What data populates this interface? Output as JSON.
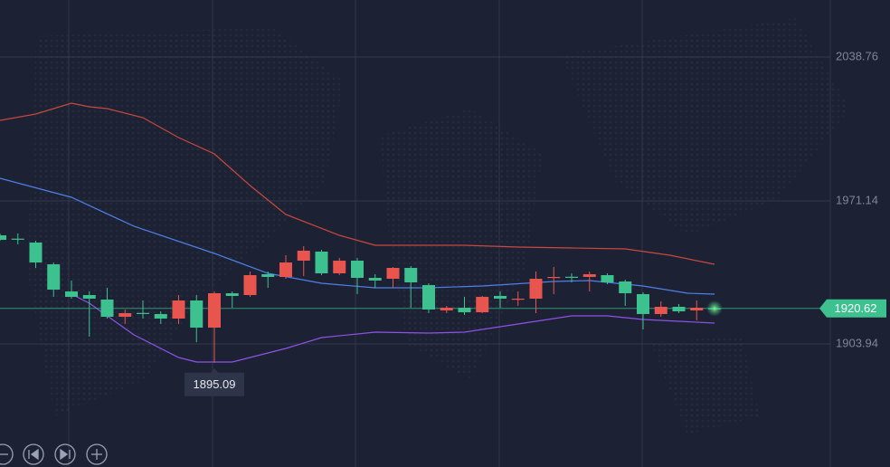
{
  "chart_data": {
    "type": "candlestick",
    "open": [
      1954.97,
      1953.4,
      1951.57,
      1941.36,
      1928.6,
      1926.9,
      1924.78,
      1916.7,
      1918.5,
      1917.98,
      1915.85,
      1924.35,
      1911.6,
      1927.75,
      1926.9,
      1936.69,
      1935.41,
      1943.06,
      1947.32,
      1937.11,
      1943.06,
      1934.98,
      1934.56,
      1939.66,
      1931.58,
      1919.68,
      1920.95,
      1918.83,
      1926.48,
      1925.1,
      1925.2,
      1935.3,
      1935.5,
      1935.41,
      1936.26,
      1933.28,
      1927.33,
      1917.98,
      1921.38,
      1919.68,
      1920.7
    ],
    "high": [
      1955.82,
      1955.82,
      1952.42,
      1942.21,
      1933.71,
      1928.6,
      1930.3,
      1920.1,
      1924.35,
      1919.25,
      1926.9,
      1926.9,
      1928.6,
      1928.6,
      1937.96,
      1937.96,
      1945.61,
      1949.87,
      1948.17,
      1944.34,
      1944.34,
      1936.69,
      1940.09,
      1940.51,
      1932.43,
      1921.8,
      1926.05,
      1926.48,
      1928.6,
      1928.6,
      1937.96,
      1940.09,
      1937.11,
      1937.96,
      1937.11,
      1934.13,
      1928.18,
      1923.93,
      1922.65,
      1924.35,
      1921.38
    ],
    "low": [
      1952.42,
      1950.72,
      1939.66,
      1926.05,
      1925.2,
      1907.34,
      1915.85,
      1913.3,
      1915.85,
      1913.3,
      1913.3,
      1904.79,
      1895.09,
      1920.95,
      1926.05,
      1930.3,
      1934.56,
      1935.84,
      1936.26,
      1936.26,
      1927.33,
      1930.3,
      1930.3,
      1920.95,
      1918.4,
      1918.4,
      1917.55,
      1918.4,
      1920.95,
      1921.8,
      1918.4,
      1927.33,
      1932.86,
      1928.6,
      1932.01,
      1921.8,
      1910.75,
      1916.7,
      1918.4,
      1915.0,
      1919.68
    ],
    "close": [
      1952.85,
      1953.27,
      1942.21,
      1929.45,
      1926.05,
      1925.2,
      1916.7,
      1918.4,
      1918.4,
      1915.85,
      1924.35,
      1911.6,
      1927.75,
      1926.48,
      1936.26,
      1935.41,
      1942.21,
      1947.74,
      1937.11,
      1943.06,
      1934.98,
      1933.71,
      1939.66,
      1932.86,
      1920.1,
      1920.95,
      1918.83,
      1926.05,
      1925.2,
      1925.2,
      1934.56,
      1935.41,
      1935.41,
      1936.69,
      1932.86,
      1927.75,
      1917.98,
      1921.38,
      1919.25,
      1920.95,
      1920.62
    ],
    "up_color": "#e8554e",
    "down_color": "#3dc18f",
    "series": [
      {
        "color": "#c9483f",
        "x": [
          0,
          2,
          4,
          5,
          6,
          8,
          10,
          12,
          14,
          16,
          19,
          21,
          23,
          26,
          29,
          32,
          35,
          37.5,
          40
        ],
        "values": [
          2008.99,
          2011.96,
          2017.07,
          2015.37,
          2014.51,
          2010.26,
          2000.9,
          1993.25,
          1978.36,
          1964.76,
          1954.97,
          1950.29,
          1950.29,
          1950.29,
          1949.45,
          1949.02,
          1948.59,
          1945.61,
          1941.36
        ]
      },
      {
        "color": "#4f7fe8",
        "x": [
          0,
          4,
          7.5,
          12,
          15,
          18,
          21,
          24,
          27,
          31,
          33,
          36,
          38.5,
          40
        ],
        "values": [
          1981.77,
          1972.84,
          1959.23,
          1946.47,
          1937.11,
          1932.43,
          1930.3,
          1930.3,
          1931.15,
          1933.28,
          1933.71,
          1931.15,
          1927.75,
          1927.33
        ]
      },
      {
        "color": "#8e52e6",
        "x": [
          4,
          5,
          7.5,
          10,
          11,
          13,
          14,
          16,
          18,
          21,
          24,
          26,
          29,
          32,
          34,
          36,
          38,
          40
        ],
        "values": [
          1927.33,
          1923.08,
          1908.19,
          1897.56,
          1895.43,
          1895.43,
          1897.56,
          1901.81,
          1906.91,
          1909.46,
          1909.04,
          1909.46,
          1913.3,
          1917.13,
          1917.13,
          1915.43,
          1914.57,
          1913.72
        ]
      }
    ],
    "ylim": [
      1846.1,
      2065.55
    ],
    "yticks": [
      2038.76,
      1971.14,
      1903.94
    ],
    "grid": true
  }
}
